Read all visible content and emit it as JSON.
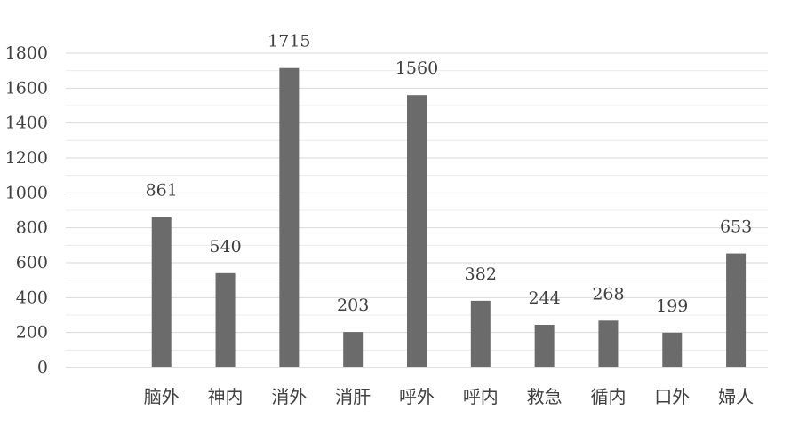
{
  "chart_data": {
    "type": "bar",
    "title": "",
    "xlabel": "",
    "ylabel": "",
    "categories": [
      "",
      "脑外",
      "神内",
      "消外",
      "消肝",
      "呼外",
      "呼内",
      "救急",
      "循内",
      "口外",
      "婦人"
    ],
    "values": [
      null,
      861,
      540,
      1715,
      203,
      1560,
      382,
      244,
      268,
      199,
      653
    ],
    "data_labels": [
      "",
      "861",
      "540",
      "1715",
      "203",
      "1560",
      "382",
      "244",
      "268",
      "199",
      "653"
    ],
    "ylim": [
      0,
      1800
    ],
    "yticks": [
      0,
      200,
      400,
      600,
      800,
      1000,
      1200,
      1400,
      1600,
      1800
    ],
    "grid": true,
    "legend": "none",
    "colors": {
      "bar": "#6b6b6b",
      "grid": "#d9d9d9",
      "axis": "#bfbfbf",
      "text": "#404040"
    }
  }
}
